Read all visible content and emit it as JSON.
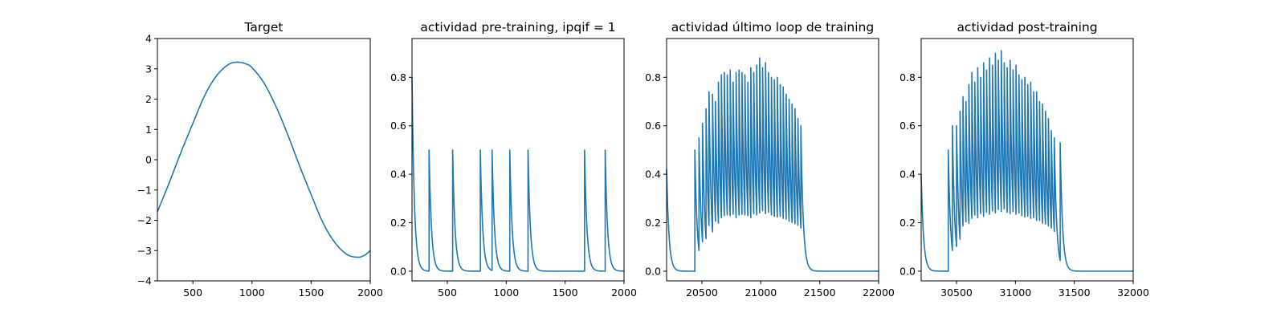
{
  "figure": {
    "background": "#ffffff",
    "line_color": "#1f77b4"
  },
  "chart_data": [
    {
      "type": "line",
      "title": "Target",
      "xlabel": "",
      "ylabel": "",
      "xlim": [
        200,
        2000
      ],
      "ylim": [
        -4,
        4
      ],
      "xticks": [
        500,
        1000,
        1500,
        2000
      ],
      "yticks": [
        -4,
        -3,
        -2,
        -1,
        0,
        1,
        2,
        3,
        4
      ],
      "grid": false,
      "series": [
        {
          "kind": "curve",
          "x": [
            200,
            300,
            400,
            500,
            600,
            700,
            800,
            880,
            950,
            1000,
            1100,
            1200,
            1300,
            1400,
            1500,
            1600,
            1700,
            1800,
            1890,
            1950,
            2000
          ],
          "y": [
            -1.72,
            -0.76,
            0.25,
            1.2,
            2.12,
            2.77,
            3.14,
            3.22,
            3.16,
            3.04,
            2.54,
            1.78,
            0.85,
            -0.18,
            -1.15,
            -2.08,
            -2.73,
            -3.12,
            -3.22,
            -3.16,
            -3.0
          ]
        }
      ]
    },
    {
      "type": "line",
      "title": "actividad pre-training, ipqif = 1",
      "xlabel": "",
      "ylabel": "",
      "xlim": [
        200,
        2000
      ],
      "ylim": [
        -0.04,
        0.96
      ],
      "xticks": [
        500,
        1000,
        1500,
        2000
      ],
      "yticks": [
        0.0,
        0.2,
        0.4,
        0.6,
        0.8
      ],
      "grid": false,
      "series": [
        {
          "kind": "spikes",
          "x0": 200,
          "y0": 0.8,
          "baseline": 0.0,
          "x_end": 2000,
          "events": [
            {
              "x": 345,
              "peak": 0.5
            },
            {
              "x": 545,
              "peak": 0.5
            },
            {
              "x": 780,
              "peak": 0.5
            },
            {
              "x": 880,
              "peak": 0.5
            },
            {
              "x": 1030,
              "peak": 0.5
            },
            {
              "x": 1185,
              "peak": 0.5
            },
            {
              "x": 1665,
              "peak": 0.5
            },
            {
              "x": 1840,
              "peak": 0.5
            }
          ]
        }
      ]
    },
    {
      "type": "line",
      "title": "actividad último loop de training",
      "xlabel": "",
      "ylabel": "",
      "xlim": [
        20200,
        22000
      ],
      "ylim": [
        -0.04,
        0.96
      ],
      "xticks": [
        20500,
        21000,
        21500,
        22000
      ],
      "yticks": [
        0.0,
        0.2,
        0.4,
        0.6,
        0.8
      ],
      "grid": false,
      "series": [
        {
          "kind": "spikes",
          "x0": 20200,
          "y0": 0.42,
          "baseline": 0.0,
          "x_end": 22000,
          "events": [
            {
              "x": 20440,
              "peak": 0.5
            },
            {
              "x": 20475,
              "peak": 0.55
            },
            {
              "x": 20505,
              "peak": 0.61
            },
            {
              "x": 20535,
              "peak": 0.67
            },
            {
              "x": 20560,
              "peak": 0.74
            },
            {
              "x": 20590,
              "peak": 0.73
            },
            {
              "x": 20615,
              "peak": 0.7
            },
            {
              "x": 20640,
              "peak": 0.78
            },
            {
              "x": 20665,
              "peak": 0.81
            },
            {
              "x": 20690,
              "peak": 0.82
            },
            {
              "x": 20715,
              "peak": 0.81
            },
            {
              "x": 20740,
              "peak": 0.83
            },
            {
              "x": 20765,
              "peak": 0.78
            },
            {
              "x": 20790,
              "peak": 0.82
            },
            {
              "x": 20815,
              "peak": 0.83
            },
            {
              "x": 20840,
              "peak": 0.82
            },
            {
              "x": 20865,
              "peak": 0.81
            },
            {
              "x": 20890,
              "peak": 0.78
            },
            {
              "x": 20915,
              "peak": 0.84
            },
            {
              "x": 20940,
              "peak": 0.82
            },
            {
              "x": 20965,
              "peak": 0.85
            },
            {
              "x": 20990,
              "peak": 0.88
            },
            {
              "x": 21015,
              "peak": 0.84
            },
            {
              "x": 21040,
              "peak": 0.86
            },
            {
              "x": 21065,
              "peak": 0.82
            },
            {
              "x": 21090,
              "peak": 0.8
            },
            {
              "x": 21115,
              "peak": 0.79
            },
            {
              "x": 21140,
              "peak": 0.8
            },
            {
              "x": 21165,
              "peak": 0.77
            },
            {
              "x": 21190,
              "peak": 0.76
            },
            {
              "x": 21215,
              "peak": 0.73
            },
            {
              "x": 21240,
              "peak": 0.71
            },
            {
              "x": 21265,
              "peak": 0.69
            },
            {
              "x": 21290,
              "peak": 0.67
            },
            {
              "x": 21315,
              "peak": 0.63
            },
            {
              "x": 21340,
              "peak": 0.6
            }
          ]
        }
      ]
    },
    {
      "type": "line",
      "title": "actividad post-training",
      "xlabel": "",
      "ylabel": "",
      "xlim": [
        30200,
        32000
      ],
      "ylim": [
        -0.04,
        0.96
      ],
      "xticks": [
        30500,
        31000,
        31500,
        32000
      ],
      "yticks": [
        0.0,
        0.2,
        0.4,
        0.6,
        0.8
      ],
      "grid": false,
      "series": [
        {
          "kind": "spikes",
          "x0": 30200,
          "y0": 0.4,
          "baseline": 0.0,
          "x_end": 32000,
          "events": [
            {
              "x": 30430,
              "peak": 0.5
            },
            {
              "x": 30465,
              "peak": 0.6
            },
            {
              "x": 30500,
              "peak": 0.6
            },
            {
              "x": 30530,
              "peak": 0.66
            },
            {
              "x": 30555,
              "peak": 0.72
            },
            {
              "x": 30580,
              "peak": 0.7
            },
            {
              "x": 30605,
              "peak": 0.77
            },
            {
              "x": 30630,
              "peak": 0.82
            },
            {
              "x": 30655,
              "peak": 0.78
            },
            {
              "x": 30680,
              "peak": 0.84
            },
            {
              "x": 30705,
              "peak": 0.8
            },
            {
              "x": 30730,
              "peak": 0.86
            },
            {
              "x": 30755,
              "peak": 0.83
            },
            {
              "x": 30780,
              "peak": 0.88
            },
            {
              "x": 30805,
              "peak": 0.85
            },
            {
              "x": 30830,
              "peak": 0.9
            },
            {
              "x": 30855,
              "peak": 0.87
            },
            {
              "x": 30880,
              "peak": 0.91
            },
            {
              "x": 30905,
              "peak": 0.86
            },
            {
              "x": 30930,
              "peak": 0.84
            },
            {
              "x": 30955,
              "peak": 0.87
            },
            {
              "x": 30980,
              "peak": 0.83
            },
            {
              "x": 31005,
              "peak": 0.85
            },
            {
              "x": 31030,
              "peak": 0.81
            },
            {
              "x": 31055,
              "peak": 0.79
            },
            {
              "x": 31080,
              "peak": 0.8
            },
            {
              "x": 31105,
              "peak": 0.77
            },
            {
              "x": 31130,
              "peak": 0.78
            },
            {
              "x": 31155,
              "peak": 0.74
            },
            {
              "x": 31180,
              "peak": 0.74
            },
            {
              "x": 31205,
              "peak": 0.7
            },
            {
              "x": 31230,
              "peak": 0.69
            },
            {
              "x": 31255,
              "peak": 0.66
            },
            {
              "x": 31280,
              "peak": 0.63
            },
            {
              "x": 31305,
              "peak": 0.58
            },
            {
              "x": 31330,
              "peak": 0.55
            },
            {
              "x": 31380,
              "peak": 0.53
            }
          ]
        }
      ]
    }
  ]
}
